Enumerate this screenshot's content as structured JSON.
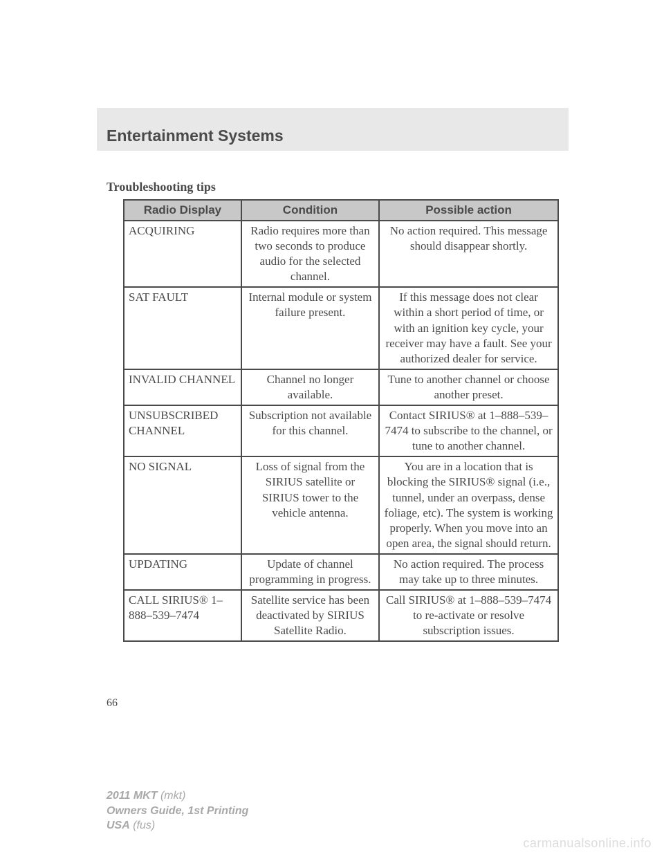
{
  "header": {
    "title": "Entertainment Systems"
  },
  "subheading": "Troubleshooting tips",
  "table": {
    "columns": [
      "Radio Display",
      "Condition",
      "Possible action"
    ],
    "rows": [
      {
        "display": "ACQUIRING",
        "condition": "Radio requires more than two seconds to produce audio for the selected channel.",
        "action": "No action required. This message should disappear shortly."
      },
      {
        "display": "SAT FAULT",
        "condition": "Internal module or system failure present.",
        "action": "If this message does not clear within a short period of time, or with an ignition key cycle, your receiver may have a fault. See your authorized dealer for service."
      },
      {
        "display": "INVALID CHANNEL",
        "condition": "Channel no longer available.",
        "action": "Tune to another channel or choose another preset."
      },
      {
        "display": "UNSUBSCRIBED CHANNEL",
        "condition": "Subscription not available for this channel.",
        "action": "Contact SIRIUS® at 1–888–539–7474 to subscribe to the channel, or tune to another channel."
      },
      {
        "display": "NO SIGNAL",
        "condition": "Loss of signal from the SIRIUS satellite or SIRIUS tower to the vehicle antenna.",
        "action": "You are in a location that is blocking the SIRIUS® signal (i.e., tunnel, under an overpass, dense foliage, etc). The system is working properly. When you move into an open area, the signal should return."
      },
      {
        "display": "UPDATING",
        "condition": "Update of channel programming in progress.",
        "action": "No action required. The process may take up to three minutes."
      },
      {
        "display": "CALL SIRIUS® 1–888–539–7474",
        "condition": "Satellite service has been deactivated by SIRIUS Satellite Radio.",
        "action": "Call SIRIUS® at 1–888–539–7474 to re-activate or resolve subscription issues."
      }
    ]
  },
  "page_number": "66",
  "footer": {
    "line1_bold": "2011 MKT",
    "line1_rest": " (mkt)",
    "line2_bold": "Owners Guide, 1st Printing",
    "line3_bold": "USA",
    "line3_rest": " (fus)"
  },
  "watermark": "carmanualsonline.info"
}
